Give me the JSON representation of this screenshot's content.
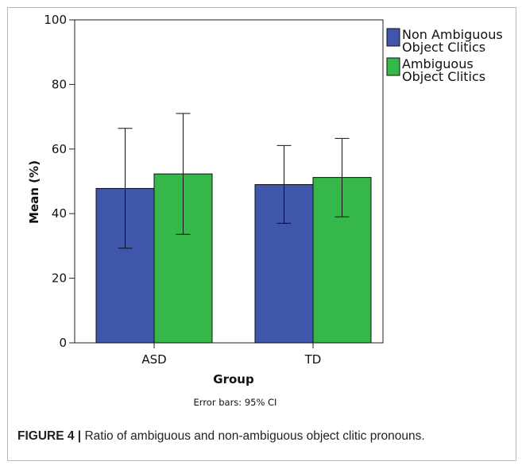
{
  "chart_data": {
    "type": "bar",
    "categories": [
      "ASD",
      "TD"
    ],
    "series": [
      {
        "name": "Non Ambiguous Object Clitics",
        "color": "#3f56ab",
        "values": [
          47.8,
          49.0
        ],
        "ci_low": [
          29.3,
          37.0
        ],
        "ci_high": [
          66.4,
          61.1
        ]
      },
      {
        "name": "Ambiguous Object Clitics",
        "color": "#35b849",
        "values": [
          52.3,
          51.2
        ],
        "ci_low": [
          33.6,
          39.0
        ],
        "ci_high": [
          71.0,
          63.3
        ]
      }
    ],
    "legend_lines": [
      [
        "Non Ambiguous",
        "Object Clitics"
      ],
      [
        "Ambiguous",
        "Object Clitics"
      ]
    ],
    "xlabel": "Group",
    "ylabel": "Mean (%)",
    "ylim": [
      0,
      100
    ],
    "yticks": [
      0,
      20,
      40,
      60,
      80,
      100
    ],
    "grid": false,
    "legend_position": "top-right",
    "note": "Error bars: 95% CI"
  },
  "caption": {
    "label": "FIGURE 4 |",
    "text": " Ratio of ambiguous and non-ambiguous object clitic pronouns."
  }
}
